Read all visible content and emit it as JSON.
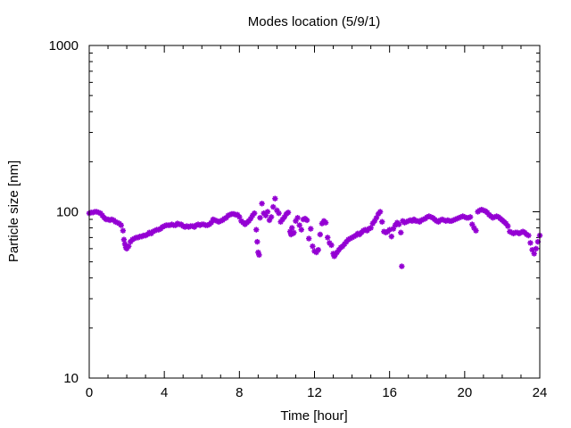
{
  "chart_data": {
    "type": "scatter",
    "title": "Modes location (5/9/1)",
    "xlabel": "Time [hour]",
    "ylabel": "Particle size [nm]",
    "xlim": [
      0,
      24
    ],
    "ylim": [
      10,
      1000
    ],
    "yscale": "log",
    "xticks": [
      0,
      4,
      8,
      12,
      16,
      20,
      24
    ],
    "xtick_labels": [
      "0",
      "4",
      "8",
      "12",
      "16",
      "20",
      "24"
    ],
    "yticks": [
      10,
      100,
      1000
    ],
    "ytick_labels": [
      "10",
      "100",
      "1000"
    ],
    "grid": false,
    "legend": "none",
    "marker_color": "#9400d3",
    "series": [
      {
        "points": [
          [
            0.0,
            98
          ],
          [
            0.1,
            99
          ],
          [
            0.2,
            99
          ],
          [
            0.3,
            100
          ],
          [
            0.4,
            100
          ],
          [
            0.5,
            99
          ],
          [
            0.6,
            98
          ],
          [
            0.7,
            95
          ],
          [
            0.8,
            92
          ],
          [
            0.9,
            90
          ],
          [
            1.0,
            90
          ],
          [
            1.1,
            89
          ],
          [
            1.2,
            90
          ],
          [
            1.3,
            89
          ],
          [
            1.4,
            87
          ],
          [
            1.5,
            86
          ],
          [
            1.6,
            85
          ],
          [
            1.7,
            83
          ],
          [
            1.8,
            77
          ],
          [
            1.85,
            68
          ],
          [
            1.9,
            64
          ],
          [
            1.95,
            61
          ],
          [
            2.0,
            60
          ],
          [
            2.1,
            62
          ],
          [
            2.2,
            66
          ],
          [
            2.3,
            68
          ],
          [
            2.4,
            69
          ],
          [
            2.5,
            70
          ],
          [
            2.6,
            70
          ],
          [
            2.7,
            71
          ],
          [
            2.8,
            71
          ],
          [
            2.9,
            72
          ],
          [
            3.0,
            72
          ],
          [
            3.1,
            73
          ],
          [
            3.2,
            75
          ],
          [
            3.3,
            74
          ],
          [
            3.4,
            76
          ],
          [
            3.5,
            77
          ],
          [
            3.6,
            78
          ],
          [
            3.7,
            78
          ],
          [
            3.8,
            79
          ],
          [
            3.9,
            81
          ],
          [
            4.0,
            82
          ],
          [
            4.1,
            83
          ],
          [
            4.2,
            83
          ],
          [
            4.3,
            83
          ],
          [
            4.4,
            84
          ],
          [
            4.5,
            83
          ],
          [
            4.6,
            83
          ],
          [
            4.7,
            85
          ],
          [
            4.8,
            84
          ],
          [
            4.9,
            84
          ],
          [
            5.0,
            82
          ],
          [
            5.1,
            81
          ],
          [
            5.2,
            82
          ],
          [
            5.3,
            81
          ],
          [
            5.4,
            82
          ],
          [
            5.5,
            82
          ],
          [
            5.6,
            81
          ],
          [
            5.7,
            83
          ],
          [
            5.8,
            84
          ],
          [
            5.9,
            83
          ],
          [
            6.0,
            84
          ],
          [
            6.1,
            84
          ],
          [
            6.2,
            83
          ],
          [
            6.3,
            83
          ],
          [
            6.4,
            84
          ],
          [
            6.5,
            86
          ],
          [
            6.6,
            90
          ],
          [
            6.7,
            89
          ],
          [
            6.8,
            88
          ],
          [
            6.9,
            87
          ],
          [
            7.0,
            88
          ],
          [
            7.1,
            89
          ],
          [
            7.2,
            91
          ],
          [
            7.3,
            92
          ],
          [
            7.4,
            95
          ],
          [
            7.5,
            96
          ],
          [
            7.6,
            97
          ],
          [
            7.7,
            97
          ],
          [
            7.8,
            96
          ],
          [
            7.9,
            96
          ],
          [
            8.0,
            93
          ],
          [
            8.1,
            88
          ],
          [
            8.2,
            86
          ],
          [
            8.3,
            84
          ],
          [
            8.4,
            86
          ],
          [
            8.5,
            88
          ],
          [
            8.6,
            91
          ],
          [
            8.7,
            95
          ],
          [
            8.8,
            98
          ],
          [
            8.9,
            78
          ],
          [
            8.95,
            66
          ],
          [
            9.0,
            57
          ],
          [
            9.05,
            55
          ],
          [
            9.1,
            92
          ],
          [
            9.2,
            112
          ],
          [
            9.3,
            98
          ],
          [
            9.4,
            95
          ],
          [
            9.5,
            100
          ],
          [
            9.6,
            89
          ],
          [
            9.7,
            93
          ],
          [
            9.8,
            107
          ],
          [
            9.9,
            120
          ],
          [
            10.0,
            102
          ],
          [
            10.1,
            98
          ],
          [
            10.2,
            87
          ],
          [
            10.3,
            90
          ],
          [
            10.4,
            93
          ],
          [
            10.5,
            97
          ],
          [
            10.6,
            99
          ],
          [
            10.7,
            76
          ],
          [
            10.75,
            73
          ],
          [
            10.8,
            80
          ],
          [
            10.85,
            74
          ],
          [
            10.9,
            75
          ],
          [
            11.0,
            88
          ],
          [
            11.1,
            92
          ],
          [
            11.2,
            83
          ],
          [
            11.3,
            78
          ],
          [
            11.4,
            90
          ],
          [
            11.5,
            91
          ],
          [
            11.6,
            89
          ],
          [
            11.7,
            69
          ],
          [
            11.8,
            79
          ],
          [
            11.9,
            62
          ],
          [
            12.0,
            58
          ],
          [
            12.1,
            57
          ],
          [
            12.2,
            59
          ],
          [
            12.3,
            73
          ],
          [
            12.4,
            85
          ],
          [
            12.5,
            88
          ],
          [
            12.6,
            86
          ],
          [
            12.7,
            70
          ],
          [
            12.8,
            65
          ],
          [
            12.9,
            63
          ],
          [
            13.0,
            56
          ],
          [
            13.05,
            54
          ],
          [
            13.1,
            55
          ],
          [
            13.2,
            57
          ],
          [
            13.3,
            59
          ],
          [
            13.4,
            61
          ],
          [
            13.5,
            62
          ],
          [
            13.6,
            64
          ],
          [
            13.7,
            66
          ],
          [
            13.8,
            68
          ],
          [
            13.9,
            69
          ],
          [
            14.0,
            70
          ],
          [
            14.1,
            71
          ],
          [
            14.2,
            72
          ],
          [
            14.3,
            74
          ],
          [
            14.4,
            73
          ],
          [
            14.5,
            75
          ],
          [
            14.6,
            77
          ],
          [
            14.7,
            78
          ],
          [
            14.8,
            77
          ],
          [
            14.9,
            79
          ],
          [
            15.0,
            80
          ],
          [
            15.1,
            85
          ],
          [
            15.2,
            88
          ],
          [
            15.3,
            92
          ],
          [
            15.4,
            97
          ],
          [
            15.5,
            100
          ],
          [
            15.6,
            87
          ],
          [
            15.7,
            76
          ],
          [
            15.8,
            75
          ],
          [
            15.9,
            76
          ],
          [
            16.0,
            78
          ],
          [
            16.1,
            71
          ],
          [
            16.2,
            79
          ],
          [
            16.3,
            83
          ],
          [
            16.4,
            86
          ],
          [
            16.5,
            84
          ],
          [
            16.6,
            75
          ],
          [
            16.65,
            47
          ],
          [
            16.7,
            88
          ],
          [
            16.8,
            86
          ],
          [
            16.9,
            87
          ],
          [
            17.0,
            88
          ],
          [
            17.1,
            89
          ],
          [
            17.2,
            88
          ],
          [
            17.3,
            90
          ],
          [
            17.4,
            88
          ],
          [
            17.5,
            88
          ],
          [
            17.6,
            87
          ],
          [
            17.7,
            89
          ],
          [
            17.8,
            90
          ],
          [
            17.9,
            91
          ],
          [
            18.0,
            93
          ],
          [
            18.1,
            94
          ],
          [
            18.2,
            93
          ],
          [
            18.3,
            92
          ],
          [
            18.4,
            90
          ],
          [
            18.5,
            88
          ],
          [
            18.6,
            87
          ],
          [
            18.7,
            89
          ],
          [
            18.8,
            90
          ],
          [
            18.9,
            89
          ],
          [
            19.0,
            88
          ],
          [
            19.1,
            89
          ],
          [
            19.2,
            88
          ],
          [
            19.3,
            88
          ],
          [
            19.4,
            89
          ],
          [
            19.5,
            90
          ],
          [
            19.6,
            91
          ],
          [
            19.7,
            92
          ],
          [
            19.8,
            93
          ],
          [
            19.9,
            94
          ],
          [
            20.0,
            93
          ],
          [
            20.1,
            92
          ],
          [
            20.2,
            92
          ],
          [
            20.3,
            93
          ],
          [
            20.4,
            84
          ],
          [
            20.5,
            80
          ],
          [
            20.6,
            77
          ],
          [
            20.7,
            100
          ],
          [
            20.8,
            102
          ],
          [
            20.9,
            103
          ],
          [
            21.0,
            102
          ],
          [
            21.1,
            101
          ],
          [
            21.2,
            99
          ],
          [
            21.3,
            96
          ],
          [
            21.4,
            94
          ],
          [
            21.5,
            92
          ],
          [
            21.6,
            93
          ],
          [
            21.7,
            94
          ],
          [
            21.8,
            93
          ],
          [
            21.9,
            91
          ],
          [
            22.0,
            89
          ],
          [
            22.1,
            87
          ],
          [
            22.2,
            85
          ],
          [
            22.3,
            82
          ],
          [
            22.4,
            76
          ],
          [
            22.5,
            75
          ],
          [
            22.6,
            74
          ],
          [
            22.7,
            75
          ],
          [
            22.8,
            75
          ],
          [
            22.9,
            74
          ],
          [
            23.0,
            75
          ],
          [
            23.1,
            76
          ],
          [
            23.2,
            75
          ],
          [
            23.3,
            73
          ],
          [
            23.4,
            72
          ],
          [
            23.5,
            65
          ],
          [
            23.6,
            59
          ],
          [
            23.7,
            56
          ],
          [
            23.8,
            60
          ],
          [
            23.9,
            66
          ],
          [
            24.0,
            72
          ]
        ]
      }
    ]
  }
}
